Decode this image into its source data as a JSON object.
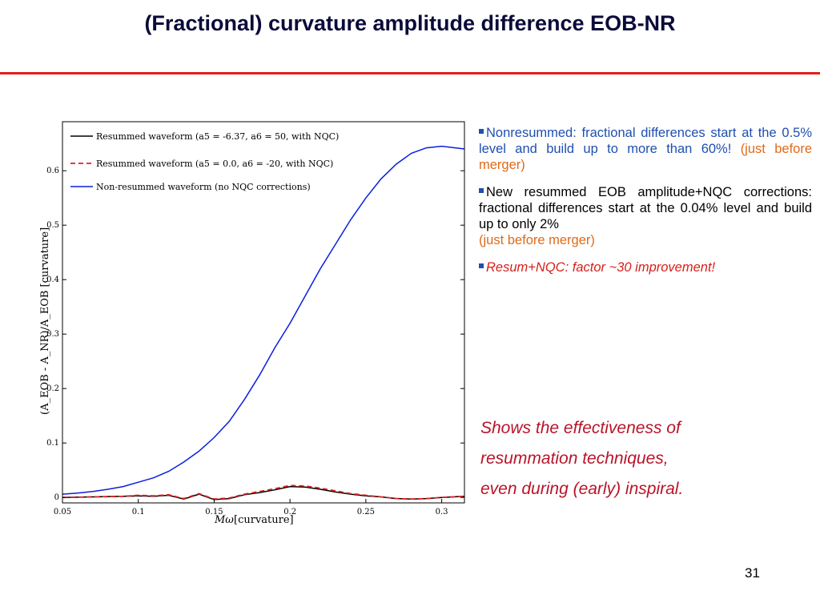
{
  "slide": {
    "title": "(Fractional) curvature amplitude difference EOB-NR",
    "page_number": "31"
  },
  "bullets": [
    {
      "main": "Nonresummed: fractional differences start at the 0.5% level and build up to more than 60%!",
      "aside": "(just before merger)"
    },
    {
      "main": "New resummed EOB amplitude+NQC corrections: fractional differences start at the 0.04% level and build up to only 2%",
      "aside": "(just before merger)"
    },
    {
      "main": "Resum+NQC: factor ~30 improvement!"
    }
  ],
  "summary": {
    "line1": "Shows the effectiveness of",
    "line2": "resummation techniques,",
    "line3": "even during (early) inspiral."
  },
  "chart_data": {
    "type": "line",
    "xlabel_main": "Mω",
    "xlabel_unit": "[curvature]",
    "ylabel": "(A_EOB - A_NR)/A_EOB  [curvature]",
    "xlim": [
      0.05,
      0.315
    ],
    "ylim": [
      -0.01,
      0.69
    ],
    "xticks": [
      "0.05",
      "0.1",
      "0.15",
      "0.2",
      "0.25",
      "0.3"
    ],
    "yticks": [
      "0",
      "0.1",
      "0.2",
      "0.3",
      "0.4",
      "0.5",
      "0.6"
    ],
    "legend_position": "top-left",
    "series": [
      {
        "name": "Resummed waveform (a5 = -6.37, a6 = 50, with NQC)",
        "color": "#000000",
        "style": "solid",
        "x": [
          0.05,
          0.07,
          0.09,
          0.1,
          0.11,
          0.12,
          0.13,
          0.14,
          0.15,
          0.16,
          0.17,
          0.18,
          0.19,
          0.2,
          0.21,
          0.22,
          0.23,
          0.24,
          0.25,
          0.26,
          0.27,
          0.28,
          0.29,
          0.3,
          0.315
        ],
        "y": [
          0.0,
          0.001,
          0.002,
          0.003,
          0.002,
          0.004,
          -0.003,
          0.006,
          -0.004,
          -0.002,
          0.005,
          0.009,
          0.014,
          0.02,
          0.019,
          0.015,
          0.01,
          0.006,
          0.003,
          0.001,
          -0.002,
          -0.003,
          -0.002,
          0.0,
          0.002
        ]
      },
      {
        "name": "Resummed waveform (a5 = 0.0, a6 = -20, with NQC)",
        "color": "#e02020",
        "style": "dashed",
        "x": [
          0.05,
          0.07,
          0.09,
          0.1,
          0.11,
          0.12,
          0.13,
          0.14,
          0.15,
          0.16,
          0.17,
          0.18,
          0.19,
          0.2,
          0.21,
          0.22,
          0.23,
          0.24,
          0.25,
          0.26,
          0.27,
          0.28,
          0.29,
          0.3,
          0.315
        ],
        "y": [
          0.0,
          0.001,
          0.002,
          0.004,
          0.003,
          0.005,
          -0.002,
          0.007,
          -0.003,
          -0.001,
          0.006,
          0.011,
          0.016,
          0.022,
          0.021,
          0.017,
          0.012,
          0.007,
          0.004,
          0.001,
          -0.002,
          -0.003,
          -0.002,
          0.0,
          0.002
        ]
      },
      {
        "name": "Non-resummed waveform (no NQC corrections)",
        "color": "#0a1ee0",
        "style": "solid",
        "x": [
          0.05,
          0.06,
          0.07,
          0.08,
          0.09,
          0.1,
          0.11,
          0.12,
          0.13,
          0.14,
          0.15,
          0.16,
          0.17,
          0.18,
          0.19,
          0.2,
          0.21,
          0.22,
          0.23,
          0.24,
          0.25,
          0.26,
          0.27,
          0.28,
          0.29,
          0.3,
          0.315
        ],
        "y": [
          0.006,
          0.008,
          0.011,
          0.015,
          0.02,
          0.028,
          0.036,
          0.048,
          0.065,
          0.085,
          0.11,
          0.14,
          0.18,
          0.225,
          0.275,
          0.32,
          0.37,
          0.42,
          0.465,
          0.51,
          0.55,
          0.585,
          0.612,
          0.632,
          0.642,
          0.645,
          0.64
        ]
      }
    ]
  }
}
